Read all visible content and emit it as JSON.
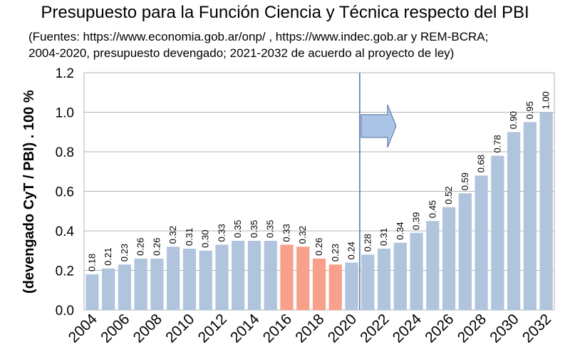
{
  "chart_data": {
    "type": "bar",
    "title": "Presupuesto para la Función Ciencia y Técnica respecto del PBI",
    "subtitle": "(Fuentes: https://www.economia.gob.ar/onp/ , https://www.indec.gob.ar y REM-BCRA;\n2004-2020, presupuesto devengado; 2021-2032 de acuerdo al proyecto de ley)",
    "xlabel": "",
    "ylabel": "(devengado CyT / PBI) . 100 %",
    "ylim": [
      0,
      1.2
    ],
    "yticks": [
      "0.0",
      "0.2",
      "0.4",
      "0.6",
      "0.8",
      "1.0",
      "1.2"
    ],
    "xtick_labels": [
      "2004",
      "2006",
      "2008",
      "2010",
      "2012",
      "2014",
      "2016",
      "2018",
      "2020",
      "2022",
      "2024",
      "2026",
      "2028",
      "2030",
      "2032"
    ],
    "categories": [
      "2004",
      "2005",
      "2006",
      "2007",
      "2008",
      "2009",
      "2010",
      "2011",
      "2012",
      "2013",
      "2014",
      "2015",
      "2016",
      "2017",
      "2018",
      "2019",
      "2020",
      "2021",
      "2022",
      "2023",
      "2024",
      "2025",
      "2026",
      "2027",
      "2028",
      "2029",
      "2030",
      "2031",
      "2032"
    ],
    "values": [
      0.18,
      0.21,
      0.23,
      0.26,
      0.26,
      0.32,
      0.31,
      0.3,
      0.33,
      0.35,
      0.35,
      0.35,
      0.33,
      0.32,
      0.26,
      0.23,
      0.24,
      0.28,
      0.31,
      0.34,
      0.39,
      0.45,
      0.52,
      0.59,
      0.68,
      0.78,
      0.9,
      0.95,
      1.0
    ],
    "labels": [
      "0.18",
      "0.21",
      "0.23",
      "0.26",
      "0.26",
      "0.32",
      "0.31",
      "0.30",
      "0.33",
      "0.35",
      "0.35",
      "0.35",
      "0.33",
      "0.32",
      "0.26",
      "0.23",
      "0.24",
      "0.28",
      "0.31",
      "0.34",
      "0.39",
      "0.45",
      "0.52",
      "0.59",
      "0.68",
      "0.78",
      "0.90",
      "0.95",
      "1.00"
    ],
    "highlighted_categories": [
      "2016",
      "2017",
      "2018",
      "2019"
    ],
    "divider_after": "2020",
    "colors": {
      "bar": "#b0c4de",
      "highlight": "#f8a08a",
      "divider": "#4f6f9f",
      "arrow_fill": "#a9c4e6",
      "arrow_stroke": "#4f6f9f",
      "grid": "#b3b3b3"
    },
    "grid": true,
    "legend": "none"
  }
}
